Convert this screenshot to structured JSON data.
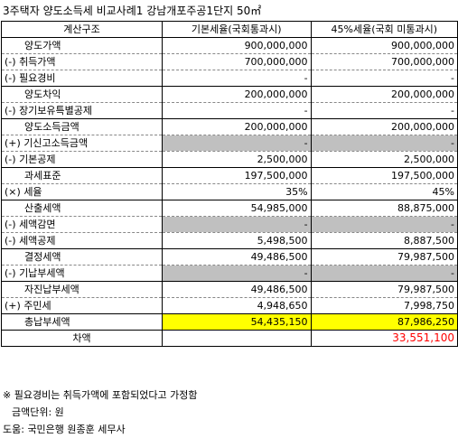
{
  "title": "3주택자 양도소득세 비교사례1 강남개포주공1단지 50㎡",
  "headers": [
    "계산구조",
    "기본세율(국회통과시)",
    "45%세율(국회 미통과시)"
  ],
  "rows": [
    {
      "label": "양도가액",
      "prefix": "",
      "v1": "900,000,000",
      "v2": "900,000,000"
    },
    {
      "label": "취득가액",
      "prefix": "(-)",
      "v1": "700,000,000",
      "v2": "700,000,000"
    },
    {
      "label": "필요경비",
      "prefix": "(-)",
      "v1": "-",
      "v2": "-"
    },
    {
      "label": "양도차익",
      "prefix": "",
      "v1": "200,000,000",
      "v2": "200,000,000"
    },
    {
      "label": "장기보유특별공제",
      "prefix": "(-)",
      "v1": "-",
      "v2": "-"
    },
    {
      "label": "양도소득금액",
      "prefix": "",
      "v1": "200,000,000",
      "v2": "200,000,000"
    },
    {
      "label": "기신고소득금액",
      "prefix": "(+)",
      "v1": "-",
      "v2": "-"
    },
    {
      "label": "기본공제",
      "prefix": "(-)",
      "v1": "2,500,000",
      "v2": "2,500,000"
    },
    {
      "label": "과세표준",
      "prefix": "",
      "v1": "197,500,000",
      "v2": "197,500,000"
    },
    {
      "label": "세율",
      "prefix": "(×)",
      "v1": "35%",
      "v2": "45%"
    },
    {
      "label": "산출세액",
      "prefix": "",
      "v1": "54,985,000",
      "v2": "88,875,000"
    },
    {
      "label": "세액감면",
      "prefix": "(-)",
      "v1": "-",
      "v2": "-"
    },
    {
      "label": "세액공제",
      "prefix": "(-)",
      "v1": "5,498,500",
      "v2": "8,887,500"
    },
    {
      "label": "결정세액",
      "prefix": "",
      "v1": "49,486,500",
      "v2": "79,987,500"
    },
    {
      "label": "기납부세액",
      "prefix": "(-)",
      "v1": "-",
      "v2": "-"
    },
    {
      "label": "자진납부세액",
      "prefix": "",
      "v1": "49,486,500",
      "v2": "79,987,500"
    },
    {
      "label": "주민세",
      "prefix": "(+)",
      "v1": "4,948,650",
      "v2": "7,998,750"
    },
    {
      "label": "총납부세액",
      "prefix": "",
      "v1": "54,435,150",
      "v2": "87,986,250"
    }
  ],
  "difference": {
    "label": "차액",
    "value": "33,551,100"
  },
  "notes": {
    "note1": "※ 필요경비는 취득가액에 포함되었다고 가정함",
    "unit": "금액단위: 원",
    "help": "도움: 국민은행 원종훈 세무사"
  },
  "colors": {
    "highlight_yellow": "#ffff00",
    "gray_cell": "#c0c0c0",
    "difference_red": "#ff0000"
  }
}
